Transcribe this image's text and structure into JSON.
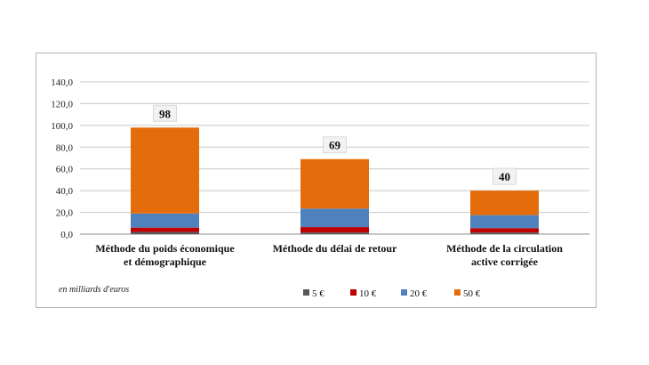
{
  "chart_data": {
    "type": "bar",
    "stacked": true,
    "categories": [
      [
        "Méthode du poids économique",
        "et démographique"
      ],
      [
        "Méthode du délai de retour"
      ],
      [
        "Méthode de la circulation",
        "active corrigée"
      ]
    ],
    "series": [
      {
        "name": "5 €",
        "color": "#595959",
        "values": [
          2,
          1.5,
          1.5
        ]
      },
      {
        "name": "10 €",
        "color": "#c00000",
        "values": [
          4,
          5,
          4
        ]
      },
      {
        "name": "20 €",
        "color": "#4f81bd",
        "values": [
          13,
          17,
          12
        ]
      },
      {
        "name": "50 €",
        "color": "#e46c0a",
        "values": [
          79,
          45.5,
          22.5
        ]
      }
    ],
    "totals": [
      "98",
      "69",
      "40"
    ],
    "yticks": [
      "0,0",
      "20,0",
      "40,0",
      "60,0",
      "80,0",
      "100,0",
      "120,0",
      "140,0"
    ],
    "ylim": [
      0,
      140
    ],
    "grid": true,
    "legend_position": "bottom",
    "note": "en milliards d'euros"
  }
}
